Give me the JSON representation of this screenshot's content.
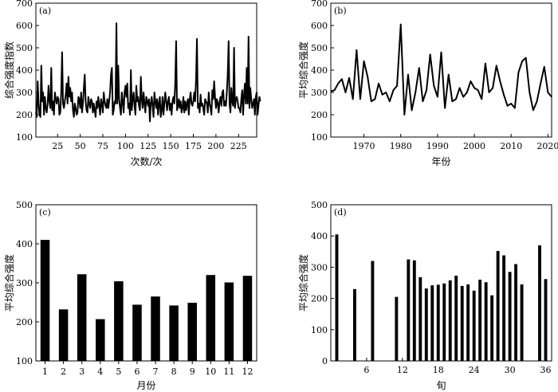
{
  "chart_data": [
    {
      "type": "line",
      "panel_label": "(a)",
      "xlabel": "次数/次",
      "ylabel": "综合强度指数",
      "xlim": [
        1,
        245
      ],
      "ylim": [
        100,
        700
      ],
      "xticks": [
        25,
        50,
        75,
        100,
        125,
        150,
        175,
        200,
        225
      ],
      "yticks": [
        100,
        200,
        300,
        400,
        500,
        600,
        700
      ],
      "series": [
        {
          "values": [
            210,
            190,
            350,
            250,
            200,
            190,
            420,
            260,
            300,
            200,
            280,
            230,
            210,
            250,
            330,
            260,
            230,
            410,
            220,
            260,
            200,
            300,
            270,
            250,
            280,
            270,
            200,
            210,
            300,
            480,
            250,
            230,
            260,
            290,
            340,
            250,
            370,
            280,
            320,
            260,
            300,
            220,
            190,
            250,
            230,
            200,
            210,
            280,
            270,
            230,
            300,
            210,
            250,
            320,
            380,
            260,
            220,
            210,
            280,
            250,
            230,
            270,
            260,
            210,
            250,
            220,
            190,
            260,
            230,
            280,
            240,
            200,
            270,
            250,
            210,
            300,
            260,
            240,
            230,
            270,
            230,
            260,
            300,
            380,
            410,
            200,
            220,
            260,
            250,
            610,
            250,
            420,
            270,
            230,
            200,
            300,
            260,
            210,
            300,
            330,
            280,
            340,
            230,
            250,
            200,
            400,
            220,
            270,
            300,
            240,
            200,
            330,
            260,
            280,
            240,
            220,
            370,
            270,
            230,
            300,
            250,
            210,
            280,
            260,
            240,
            270,
            170,
            250,
            280,
            240,
            190,
            300,
            260,
            230,
            270,
            200,
            250,
            280,
            190,
            220,
            280,
            200,
            250,
            300,
            260,
            220,
            260,
            280,
            220,
            250,
            200,
            260,
            280,
            250,
            340,
            530,
            220,
            240,
            270,
            230,
            260,
            210,
            230,
            280,
            210,
            260,
            220,
            250,
            270,
            200,
            270,
            300,
            250,
            240,
            260,
            300,
            260,
            360,
            540,
            230,
            250,
            210,
            290,
            240,
            250,
            230,
            200,
            270,
            260,
            250,
            210,
            300,
            250,
            230,
            200,
            310,
            270,
            350,
            280,
            230,
            270,
            250,
            210,
            260,
            280,
            240,
            300,
            310,
            240,
            260,
            240,
            300,
            380,
            530,
            250,
            210,
            320,
            260,
            240,
            500,
            230,
            270,
            280,
            260,
            230,
            230,
            210,
            270,
            310,
            200,
            290,
            340,
            250,
            410,
            250,
            550,
            230,
            320,
            270,
            230,
            250,
            270,
            200,
            280,
            300,
            200,
            240,
            280,
            260
          ]
        }
      ]
    },
    {
      "type": "line",
      "panel_label": "(b)",
      "xlabel": "年份",
      "ylabel": "平均综合强度",
      "xlim": [
        1961,
        2021
      ],
      "ylim": [
        100,
        700
      ],
      "xticks": [
        1970,
        1980,
        1990,
        2000,
        2010,
        2020
      ],
      "yticks": [
        100,
        200,
        300,
        400,
        500,
        600,
        700
      ],
      "x": [
        1961,
        1962,
        1963,
        1964,
        1965,
        1966,
        1967,
        1968,
        1969,
        1970,
        1971,
        1972,
        1973,
        1974,
        1975,
        1976,
        1977,
        1978,
        1979,
        1980,
        1981,
        1982,
        1983,
        1984,
        1985,
        1986,
        1987,
        1988,
        1989,
        1990,
        1991,
        1992,
        1993,
        1994,
        1995,
        1996,
        1997,
        1998,
        1999,
        2000,
        2001,
        2002,
        2003,
        2004,
        2005,
        2006,
        2007,
        2008,
        2009,
        2010,
        2011,
        2012,
        2013,
        2014,
        2015,
        2016,
        2017,
        2018,
        2019,
        2020,
        2021
      ],
      "series": [
        {
          "values": [
            305,
            310,
            340,
            360,
            300,
            365,
            270,
            490,
            270,
            440,
            370,
            260,
            270,
            340,
            290,
            300,
            260,
            310,
            330,
            605,
            200,
            380,
            220,
            300,
            410,
            260,
            310,
            470,
            330,
            280,
            480,
            230,
            380,
            260,
            270,
            320,
            280,
            300,
            350,
            320,
            310,
            270,
            430,
            300,
            320,
            420,
            350,
            290,
            240,
            250,
            230,
            390,
            440,
            455,
            300,
            220,
            260,
            340,
            415,
            300,
            280
          ]
        }
      ]
    },
    {
      "type": "bar",
      "panel_label": "(c)",
      "xlabel": "月份",
      "ylabel": "平均综合强度",
      "ylim": [
        100,
        500
      ],
      "yticks": [
        100,
        200,
        300,
        400,
        500
      ],
      "categories": [
        "1",
        "2",
        "3",
        "4",
        "5",
        "6",
        "7",
        "8",
        "9",
        "10",
        "11",
        "12"
      ],
      "values": [
        410,
        232,
        322,
        207,
        304,
        244,
        265,
        242,
        249,
        320,
        301,
        318
      ]
    },
    {
      "type": "bar",
      "panel_label": "(d)",
      "xlabel": "旬",
      "ylabel": "平均综合强度",
      "xlim": [
        0,
        37
      ],
      "ylim": [
        0,
        500
      ],
      "xticks": [
        6,
        12,
        18,
        24,
        30,
        36
      ],
      "yticks": [
        0,
        100,
        200,
        300,
        400,
        500
      ],
      "x": [
        1,
        4,
        7,
        11,
        13,
        14,
        15,
        16,
        17,
        18,
        19,
        20,
        21,
        22,
        23,
        24,
        25,
        26,
        27,
        28,
        29,
        30,
        31,
        32,
        35,
        36
      ],
      "values": [
        405,
        230,
        320,
        205,
        325,
        322,
        268,
        232,
        242,
        244,
        248,
        258,
        273,
        240,
        245,
        225,
        260,
        252,
        210,
        352,
        338,
        285,
        310,
        245,
        370,
        262
      ]
    }
  ]
}
